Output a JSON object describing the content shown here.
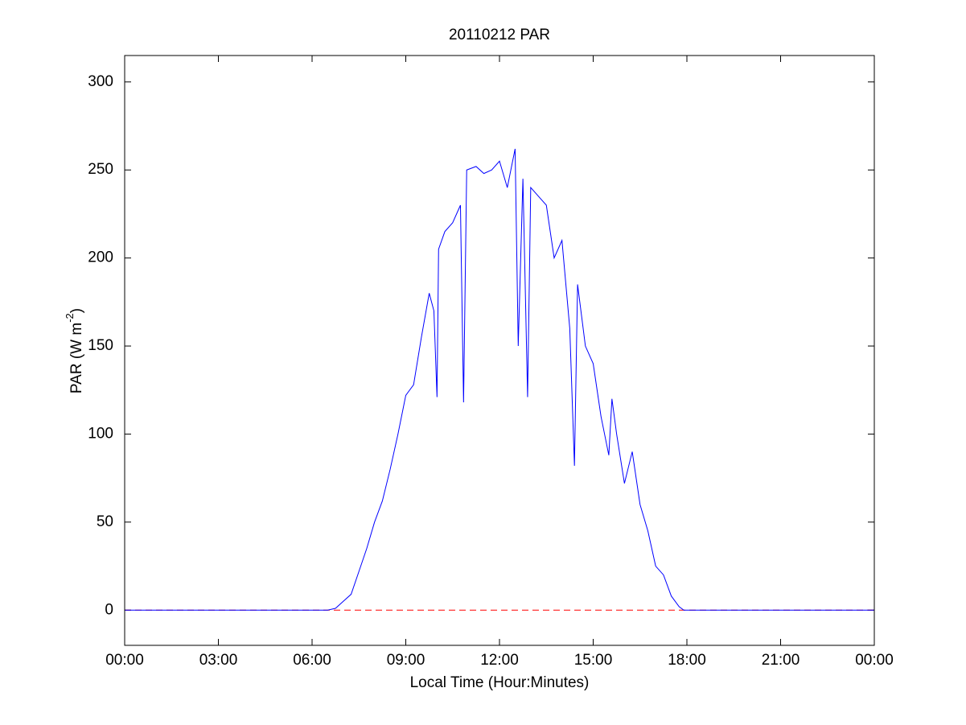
{
  "chart_data": {
    "type": "line",
    "title": "20110212 PAR",
    "xlabel": "Local Time (Hour:Minutes)",
    "ylabel_parts": [
      "PAR (W m",
      "-2",
      ")"
    ],
    "xlim": [
      0,
      24
    ],
    "ylim": [
      -20,
      315
    ],
    "xticks": [
      {
        "value": 0,
        "label": "00:00"
      },
      {
        "value": 3,
        "label": "03:00"
      },
      {
        "value": 6,
        "label": "06:00"
      },
      {
        "value": 9,
        "label": "09:00"
      },
      {
        "value": 12,
        "label": "12:00"
      },
      {
        "value": 15,
        "label": "15:00"
      },
      {
        "value": 18,
        "label": "18:00"
      },
      {
        "value": 21,
        "label": "21:00"
      },
      {
        "value": 24,
        "label": "00:00"
      }
    ],
    "yticks": [
      0,
      50,
      100,
      150,
      200,
      250,
      300
    ],
    "reference_line": {
      "value": 0,
      "color": "#ff0000",
      "dashed": true
    },
    "series": [
      {
        "color": "#0000ff",
        "x": [
          0,
          6.5,
          6.75,
          7.0,
          7.25,
          7.5,
          7.75,
          8.0,
          8.25,
          8.5,
          8.75,
          9.0,
          9.25,
          9.5,
          9.75,
          9.9,
          10.0,
          10.05,
          10.25,
          10.5,
          10.75,
          10.85,
          10.95,
          11.25,
          11.5,
          11.75,
          12.0,
          12.25,
          12.5,
          12.6,
          12.75,
          12.9,
          13.0,
          13.25,
          13.5,
          13.75,
          14.0,
          14.25,
          14.4,
          14.5,
          14.75,
          15.0,
          15.25,
          15.5,
          15.6,
          15.75,
          16.0,
          16.25,
          16.5,
          16.75,
          17.0,
          17.25,
          17.5,
          17.75,
          17.9,
          24
        ],
        "values": [
          0,
          0,
          1,
          5,
          9,
          22,
          35,
          50,
          62,
          80,
          100,
          122,
          128,
          155,
          180,
          170,
          121,
          205,
          215,
          220,
          230,
          118,
          250,
          252,
          248,
          250,
          255,
          240,
          262,
          150,
          245,
          121,
          240,
          235,
          230,
          200,
          210,
          160,
          82,
          185,
          150,
          140,
          110,
          88,
          120,
          100,
          72,
          90,
          60,
          45,
          25,
          20,
          8,
          2,
          0,
          0
        ]
      }
    ]
  }
}
